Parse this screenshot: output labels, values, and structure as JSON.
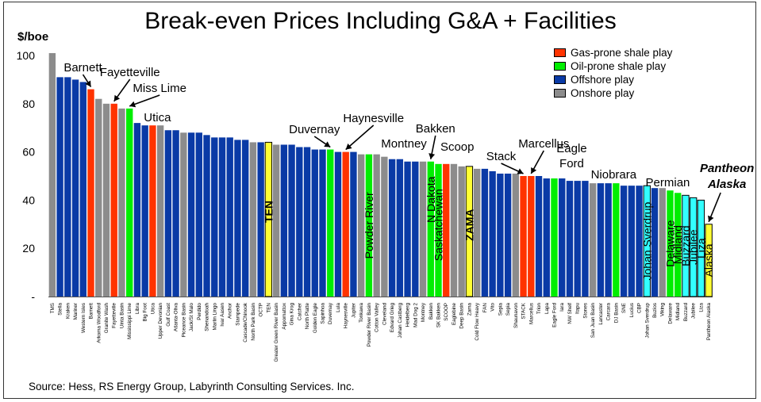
{
  "chart_data": {
    "type": "bar",
    "title": "Break-even Prices Including G&A + Facilities",
    "ylabel": "$/boe",
    "xlabel": "",
    "ylim": [
      0,
      100
    ],
    "yticks": [
      "-",
      "20",
      "40",
      "60",
      "80",
      "100"
    ],
    "source": "Source: Hess, RS Energy Group, Labyrinth Consulting Services. Inc.",
    "colors": {
      "gas": "#ff3300",
      "oil": "#00ee00",
      "offshore": "#0a3aa6",
      "onshore": "#8c8c8c",
      "highlight_yellow": "#ffff33",
      "highlight_cyan": "#33ffff"
    },
    "legend": [
      {
        "label": "Gas-prone shale play",
        "type": "gas"
      },
      {
        "label": "Oil-prone shale play",
        "type": "oil"
      },
      {
        "label": "Offshore play",
        "type": "offshore"
      },
      {
        "label": "Onshore play",
        "type": "onshore"
      }
    ],
    "bars": [
      {
        "label": "TMS",
        "value": 101,
        "type": "onshore"
      },
      {
        "label": "Stella",
        "value": 91,
        "type": "offshore"
      },
      {
        "label": "Kraken",
        "value": 91,
        "type": "offshore"
      },
      {
        "label": "Mariner",
        "value": 90,
        "type": "offshore"
      },
      {
        "label": "Western Isles",
        "value": 89,
        "type": "offshore"
      },
      {
        "label": "Barnett",
        "value": 86,
        "type": "gas"
      },
      {
        "label": "Arkoma Woodford",
        "value": 82,
        "type": "onshore"
      },
      {
        "label": "Granite Wash",
        "value": 80,
        "type": "onshore"
      },
      {
        "label": "Fayetteville",
        "value": 80,
        "type": "gas"
      },
      {
        "label": "Uinta Basin",
        "value": 78,
        "type": "onshore"
      },
      {
        "label": "Mississippi Lime",
        "value": 78,
        "type": "oil"
      },
      {
        "label": "Libra",
        "value": 72,
        "type": "offshore"
      },
      {
        "label": "Big Foot",
        "value": 71,
        "type": "offshore"
      },
      {
        "label": "Utica",
        "value": 71,
        "type": "gas"
      },
      {
        "label": "Upper Devonian",
        "value": 71,
        "type": "onshore"
      },
      {
        "label": "Gulf Coast",
        "value": 69,
        "type": "offshore"
      },
      {
        "label": "Atlanta-Oliva",
        "value": 69,
        "type": "offshore"
      },
      {
        "label": "Piceance Basin",
        "value": 68,
        "type": "onshore"
      },
      {
        "label": "Jack/St Malo",
        "value": 68,
        "type": "offshore"
      },
      {
        "label": "Perdido",
        "value": 68,
        "type": "offshore"
      },
      {
        "label": "Shenandoah",
        "value": 67,
        "type": "offshore"
      },
      {
        "label": "Marlin Lingo",
        "value": 66,
        "type": "offshore"
      },
      {
        "label": "Ivar Aasen",
        "value": 66,
        "type": "offshore"
      },
      {
        "label": "Anchor",
        "value": 66,
        "type": "offshore"
      },
      {
        "label": "Stampede",
        "value": 65,
        "type": "offshore"
      },
      {
        "label": "Cascade/Chinook",
        "value": 65,
        "type": "offshore"
      },
      {
        "label": "North Park Basin",
        "value": 64,
        "type": "onshore"
      },
      {
        "label": "OCTP",
        "value": 64,
        "type": "offshore"
      },
      {
        "label": "TEN",
        "value": 64,
        "type": "offshore",
        "highlight": "yellow",
        "inside_label": "TEN"
      },
      {
        "label": "Greater Green River Basin",
        "value": 63,
        "type": "onshore"
      },
      {
        "label": "Appomattox",
        "value": 63,
        "type": "offshore"
      },
      {
        "label": "Gina Krog",
        "value": 63,
        "type": "offshore"
      },
      {
        "label": "Catcher",
        "value": 62,
        "type": "offshore"
      },
      {
        "label": "North Platte",
        "value": 62,
        "type": "offshore"
      },
      {
        "label": "Golden Eagle",
        "value": 61,
        "type": "offshore"
      },
      {
        "label": "Sapinhoa",
        "value": 61,
        "type": "offshore"
      },
      {
        "label": "Duvernay",
        "value": 61,
        "type": "oil"
      },
      {
        "label": "Lula",
        "value": 60,
        "type": "offshore"
      },
      {
        "label": "Haynesville",
        "value": 60,
        "type": "gas"
      },
      {
        "label": "Jupiter",
        "value": 60,
        "type": "offshore"
      },
      {
        "label": "Tonkawa",
        "value": 59,
        "type": "onshore"
      },
      {
        "label": "Powder River Basin",
        "value": 59,
        "type": "oil",
        "inside_label": "Powder River"
      },
      {
        "label": "Cotton Valley",
        "value": 59,
        "type": "onshore"
      },
      {
        "label": "Cleveland",
        "value": 58,
        "type": "onshore"
      },
      {
        "label": "Edvard Grieg",
        "value": 57,
        "type": "offshore"
      },
      {
        "label": "Johan Castberg",
        "value": 57,
        "type": "offshore"
      },
      {
        "label": "Heidelberg",
        "value": 56,
        "type": "offshore"
      },
      {
        "label": "Mad Dog 2",
        "value": 56,
        "type": "offshore"
      },
      {
        "label": "Montney",
        "value": 56,
        "type": "onshore"
      },
      {
        "label": "Bakken",
        "value": 56,
        "type": "oil",
        "inside_label": "N Dakota"
      },
      {
        "label": "SK Bakken",
        "value": 55,
        "type": "oil",
        "inside_label": "Saskatchewan"
      },
      {
        "label": "SCOOP",
        "value": 55,
        "type": "gas"
      },
      {
        "label": "Eaglebine",
        "value": 55,
        "type": "onshore"
      },
      {
        "label": "Deep Basin",
        "value": 54,
        "type": "onshore"
      },
      {
        "label": "Zama",
        "value": 54,
        "type": "offshore",
        "highlight": "yellow",
        "inside_label": "ZAMA"
      },
      {
        "label": "Cold Flow Heavy",
        "value": 53,
        "type": "onshore"
      },
      {
        "label": "FAN",
        "value": 53,
        "type": "offshore"
      },
      {
        "label": "Vito",
        "value": 52,
        "type": "offshore"
      },
      {
        "label": "Sepia",
        "value": 51,
        "type": "offshore"
      },
      {
        "label": "Sepia",
        "value": 51,
        "type": "offshore"
      },
      {
        "label": "Shaunavon",
        "value": 51,
        "type": "onshore"
      },
      {
        "label": "STACK",
        "value": 50,
        "type": "gas"
      },
      {
        "label": "Marcellus",
        "value": 50,
        "type": "gas"
      },
      {
        "label": "Trion",
        "value": 50,
        "type": "offshore"
      },
      {
        "label": "Lapa",
        "value": 49,
        "type": "offshore"
      },
      {
        "label": "Eagle Ford",
        "value": 49,
        "type": "oil"
      },
      {
        "label": "Iara",
        "value": 49,
        "type": "offshore"
      },
      {
        "label": "NW Shelf",
        "value": 48,
        "type": "offshore"
      },
      {
        "label": "Itapu",
        "value": 48,
        "type": "offshore"
      },
      {
        "label": "Stones",
        "value": 48,
        "type": "offshore"
      },
      {
        "label": "San Juan Basin",
        "value": 47,
        "type": "onshore"
      },
      {
        "label": "Lancaster",
        "value": 47,
        "type": "offshore"
      },
      {
        "label": "Carcara",
        "value": 47,
        "type": "offshore"
      },
      {
        "label": "DJ Basin",
        "value": 47,
        "type": "oil"
      },
      {
        "label": "SNE",
        "value": 46,
        "type": "offshore"
      },
      {
        "label": "Lucius",
        "value": 46,
        "type": "offshore"
      },
      {
        "label": "CBP",
        "value": 46,
        "type": "offshore"
      },
      {
        "label": "Johan Sverdrup",
        "value": 46,
        "type": "offshore",
        "highlight": "cyan",
        "inside_label": "Johan Sverdrup"
      },
      {
        "label": "Buzios",
        "value": 45,
        "type": "offshore"
      },
      {
        "label": "Viking",
        "value": 45,
        "type": "onshore"
      },
      {
        "label": "Delaware",
        "value": 44,
        "type": "oil",
        "inside_label": "Delaware"
      },
      {
        "label": "Midland",
        "value": 43,
        "type": "oil",
        "inside_label": "Midland"
      },
      {
        "label": "Buzzard",
        "value": 42,
        "type": "offshore",
        "highlight": "cyan",
        "inside_label": "Buzzard"
      },
      {
        "label": "Jubilee",
        "value": 41,
        "type": "offshore",
        "highlight": "cyan",
        "inside_label": "Jubilee"
      },
      {
        "label": "Liza",
        "value": 40,
        "type": "offshore",
        "highlight": "cyan",
        "inside_label": "Liza"
      },
      {
        "label": "Pantheon Alaska",
        "value": 30,
        "type": "onshore",
        "highlight": "yellow",
        "inside_label": "Alaska"
      }
    ],
    "callouts": [
      {
        "text": "Barnett",
        "bar": 5,
        "italic_bold": false
      },
      {
        "text": "Fayetteville",
        "bar": 8,
        "italic_bold": false
      },
      {
        "text": "Miss Lime",
        "bar": 10,
        "italic_bold": false
      },
      {
        "text": "Utica",
        "bar": 13,
        "italic_bold": false
      },
      {
        "text": "Duvernay",
        "bar": 36,
        "italic_bold": false
      },
      {
        "text": "Haynesville",
        "bar": 38,
        "italic_bold": false
      },
      {
        "text": "Montney",
        "bar": 48,
        "italic_bold": false
      },
      {
        "text": "Bakken",
        "bar": 49,
        "italic_bold": false
      },
      {
        "text": "Scoop",
        "bar": 51,
        "italic_bold": false
      },
      {
        "text": "Stack",
        "bar": 61,
        "italic_bold": false
      },
      {
        "text": "Marcellus",
        "bar": 62,
        "italic_bold": false
      },
      {
        "text": "Eagle",
        "bar": 65,
        "italic_bold": false
      },
      {
        "text": "Ford",
        "bar": 65,
        "italic_bold": false
      },
      {
        "text": "Niobrara",
        "bar": 73,
        "italic_bold": false
      },
      {
        "text": "Permian",
        "bar": 80,
        "italic_bold": false
      },
      {
        "text": "Pantheon",
        "bar": 85,
        "italic_bold": true
      },
      {
        "text": "Alaska",
        "bar": 85,
        "italic_bold": true
      }
    ]
  }
}
